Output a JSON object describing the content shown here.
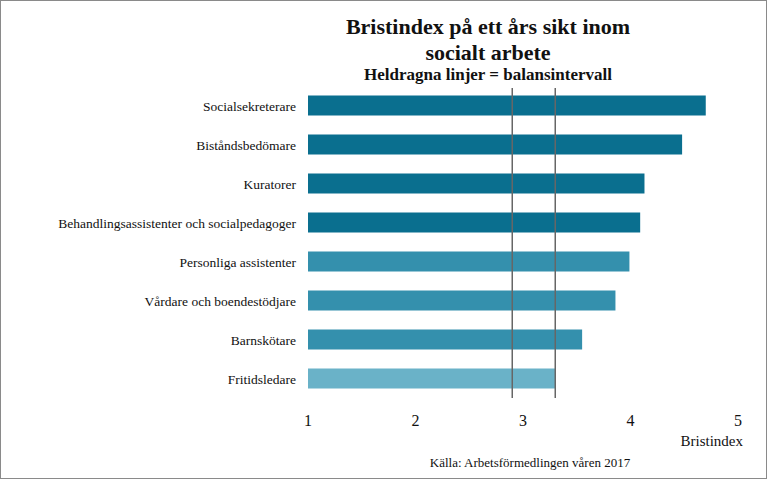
{
  "chart_data": {
    "type": "bar",
    "orientation": "horizontal",
    "title": "Bristindex på ett års sikt inom socialt arbete",
    "subtitle": "Heldragna linjer = balansintervall",
    "xlabel": "Bristindex",
    "source": "Källa: Arbetsförmedlingen våren 2017",
    "categories": [
      "Socialsekreterare",
      "Biståndsbedömare",
      "Kuratorer",
      "Behandlingsassistenter och socialpedagoger",
      "Personliga assistenter",
      "Vårdare och boendestödjare",
      "Barnskötare",
      "Fritidsledare"
    ],
    "values": [
      4.7,
      4.48,
      4.13,
      4.09,
      3.99,
      3.86,
      3.55,
      3.3
    ],
    "colors": [
      "#0a6f8f",
      "#0a6f8f",
      "#0a6f8f",
      "#0a6f8f",
      "#3490ad",
      "#3490ad",
      "#3490ad",
      "#6ab2c8"
    ],
    "reference_lines": [
      2.9,
      3.3
    ],
    "xlim": [
      1,
      5
    ],
    "xticks": [
      1,
      2,
      3,
      4,
      5
    ],
    "grid": false,
    "tick_labels": "x"
  }
}
